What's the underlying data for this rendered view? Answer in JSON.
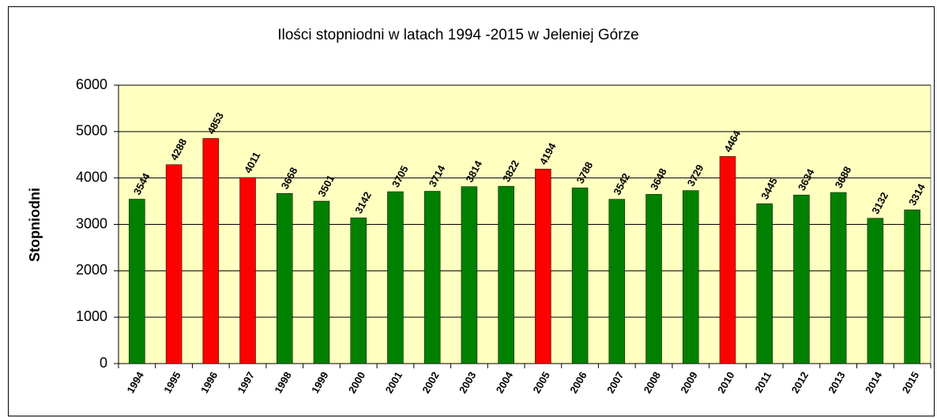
{
  "chart_data": {
    "type": "bar",
    "title": "Ilości stopniodni w latach 1994 -2015 w Jeleniej Górze",
    "ylabel": "Stopniodni",
    "categories": [
      "1994",
      "1995",
      "1996",
      "1997",
      "1998",
      "1999",
      "2000",
      "2001",
      "2002",
      "2003",
      "2004",
      "2005",
      "2006",
      "2007",
      "2008",
      "2009",
      "2010",
      "2011",
      "2012",
      "2013",
      "2014",
      "2015"
    ],
    "values": [
      3544,
      4288,
      4853,
      4011,
      3668,
      3501,
      3142,
      3705,
      3714,
      3814,
      3822,
      4194,
      3788,
      3542,
      3648,
      3729,
      4464,
      3445,
      3634,
      3688,
      3132,
      3314
    ],
    "colors": [
      "#008000",
      "#ff0000",
      "#ff0000",
      "#ff0000",
      "#008000",
      "#008000",
      "#008000",
      "#008000",
      "#008000",
      "#008000",
      "#008000",
      "#ff0000",
      "#008000",
      "#008000",
      "#008000",
      "#008000",
      "#ff0000",
      "#008000",
      "#008000",
      "#008000",
      "#008000",
      "#008000"
    ],
    "ylim": [
      0,
      6000
    ],
    "yticks": [
      0,
      1000,
      2000,
      3000,
      4000,
      5000,
      6000
    ],
    "grid": true
  }
}
